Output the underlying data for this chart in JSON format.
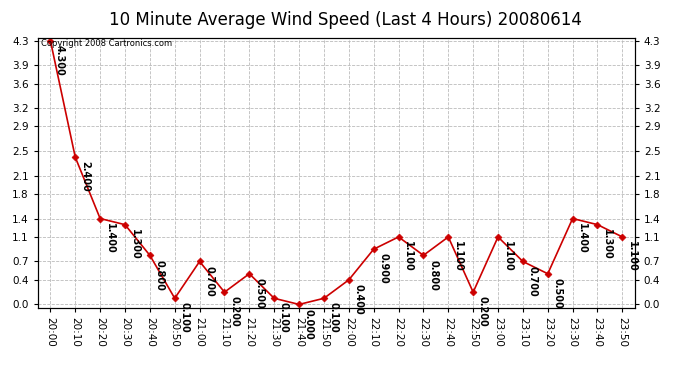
{
  "title": "10 Minute Average Wind Speed (Last 4 Hours) 20080614",
  "copyright": "Copyright 2008 Cartronics.com",
  "x_labels": [
    "20:00",
    "20:10",
    "20:20",
    "20:30",
    "20:40",
    "20:50",
    "21:00",
    "21:10",
    "21:20",
    "21:30",
    "21:40",
    "21:50",
    "22:00",
    "22:10",
    "22:20",
    "22:30",
    "22:40",
    "22:50",
    "23:00",
    "23:10",
    "23:20",
    "23:30",
    "23:40",
    "23:50"
  ],
  "y_values": [
    4.3,
    2.4,
    1.4,
    1.3,
    0.8,
    0.1,
    0.7,
    0.2,
    0.5,
    0.1,
    0.0,
    0.1,
    0.4,
    0.9,
    1.1,
    0.8,
    1.1,
    0.2,
    1.1,
    0.7,
    0.5,
    1.4,
    1.3,
    1.1
  ],
  "point_labels": [
    "4.300",
    "2.400",
    "1.400",
    "1.300",
    "0.800",
    "0.100",
    "0.700",
    "0.200",
    "0.500",
    "0.100",
    "0.000",
    "0.100",
    "0.400",
    "0.900",
    "1.100",
    "0.800",
    "1.100",
    "0.200",
    "1.100",
    "0.700",
    "0.500",
    "1.400",
    "1.300",
    "1.100"
  ],
  "line_color": "#cc0000",
  "marker_color": "#cc0000",
  "bg_color": "#ffffff",
  "plot_bg_color": "#ffffff",
  "grid_color": "#bbbbbb",
  "y_ticks": [
    0.0,
    0.4,
    0.7,
    1.1,
    1.4,
    1.8,
    2.1,
    2.5,
    2.9,
    3.2,
    3.6,
    3.9,
    4.3
  ],
  "ylim": [
    0.0,
    4.3
  ],
  "title_fontsize": 12,
  "label_fontsize": 7,
  "tick_fontsize": 7.5
}
